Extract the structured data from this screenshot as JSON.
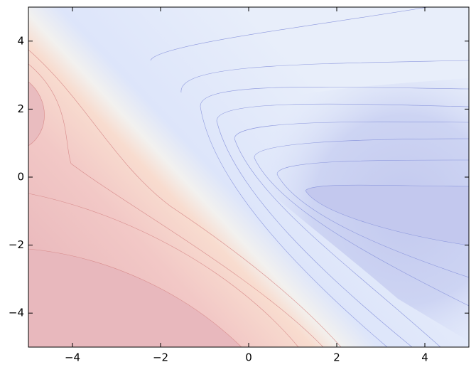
{
  "chart_data": {
    "type": "contour",
    "xlim": [
      -5,
      5
    ],
    "ylim": [
      -5,
      5
    ],
    "xticks": [
      {
        "value": -4,
        "label": "−4"
      },
      {
        "value": -2,
        "label": "−2"
      },
      0,
      2,
      4
    ],
    "yticks": [
      {
        "value": -4,
        "label": "−4"
      },
      {
        "value": -2,
        "label": "−2"
      },
      0,
      2,
      4
    ]
  }
}
